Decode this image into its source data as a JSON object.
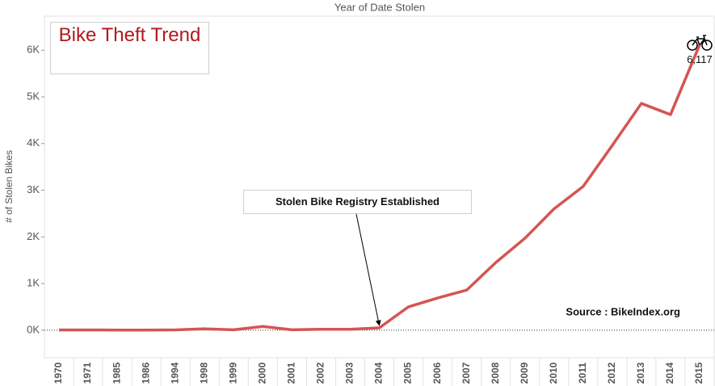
{
  "chart_data": {
    "type": "line",
    "title": "Bike Theft Trend",
    "x_label": "Year of Date Stolen",
    "y_label": "# of Stolen Bikes",
    "annotations": [
      "Stolen Bike Registry Established",
      "Source : BikeIndex.org"
    ],
    "categories": [
      "1970",
      "1971",
      "1985",
      "1986",
      "1994",
      "1998",
      "1999",
      "2000",
      "2001",
      "2002",
      "2003",
      "2004",
      "2005",
      "2006",
      "2007",
      "2008",
      "2009",
      "2010",
      "2011",
      "2012",
      "2013",
      "2014",
      "2015"
    ],
    "values": [
      5,
      5,
      3,
      3,
      8,
      30,
      10,
      80,
      10,
      20,
      20,
      50,
      500,
      690,
      860,
      1450,
      1970,
      2600,
      3080,
      3960,
      4860,
      4620,
      6117
    ],
    "value_labels": [
      null,
      null,
      null,
      null,
      null,
      null,
      null,
      null,
      null,
      null,
      null,
      null,
      null,
      null,
      null,
      null,
      null,
      null,
      null,
      null,
      null,
      null,
      "6,117"
    ],
    "color": "#d45552",
    "ylim": [
      -590,
      6730
    ],
    "yticks": [
      {
        "value": 0,
        "label": "0K"
      },
      {
        "value": 1000,
        "label": "1K"
      },
      {
        "value": 2000,
        "label": "2K"
      },
      {
        "value": 3000,
        "label": "3K"
      },
      {
        "value": 4000,
        "label": "4K"
      },
      {
        "value": 5000,
        "label": "5K"
      },
      {
        "value": 6000,
        "label": "6K"
      }
    ],
    "zero_line": true
  }
}
